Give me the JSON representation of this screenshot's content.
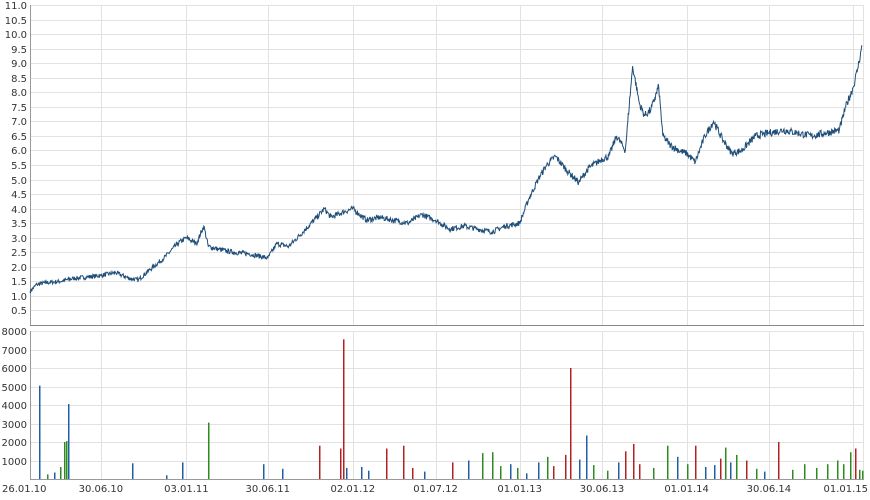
{
  "chart_data": [
    {
      "type": "line",
      "title": "",
      "xlabel": "",
      "ylabel": "",
      "ylim": [
        0,
        11
      ],
      "y_ticks": [
        "0.5",
        "1.0",
        "1.5",
        "2.0",
        "2.5",
        "3.0",
        "3.5",
        "4.0",
        "4.5",
        "5.0",
        "5.5",
        "6.0",
        "6.5",
        "7.0",
        "7.5",
        "8.0",
        "8.5",
        "9.0",
        "9.5",
        "10.0",
        "10.5",
        "11.0"
      ],
      "grid": true,
      "color": "#1f4e79",
      "series": [
        {
          "x": [
            "2010-01-26",
            "2010-02-10",
            "2010-03-01",
            "2010-04-01",
            "2010-05-01",
            "2010-06-01",
            "2010-06-30",
            "2010-08-01",
            "2010-09-01",
            "2010-09-20",
            "2010-10-15",
            "2010-11-15",
            "2010-12-15",
            "2011-01-03",
            "2011-01-25",
            "2011-02-10",
            "2011-02-20",
            "2011-03-15",
            "2011-04-15",
            "2011-05-20",
            "2011-06-30",
            "2011-07-20",
            "2011-08-15",
            "2011-09-15",
            "2011-10-15",
            "2011-11-01",
            "2011-11-15",
            "2011-12-15",
            "2012-01-02",
            "2012-02-01",
            "2012-03-01",
            "2012-04-01",
            "2012-05-01",
            "2012-06-01",
            "2012-07-01",
            "2012-08-01",
            "2012-09-01",
            "2012-10-01",
            "2012-11-01",
            "2012-12-01",
            "2013-01-01",
            "2013-01-20",
            "2013-02-10",
            "2013-03-01",
            "2013-03-20",
            "2013-04-15",
            "2013-05-10",
            "2013-06-01",
            "2013-06-30",
            "2013-07-15",
            "2013-08-01",
            "2013-08-20",
            "2013-09-05",
            "2013-09-20",
            "2013-10-01",
            "2013-10-15",
            "2013-11-01",
            "2013-11-10",
            "2013-11-25",
            "2013-12-15",
            "2014-01-01",
            "2014-01-20",
            "2014-02-10",
            "2014-03-01",
            "2014-03-20",
            "2014-04-10",
            "2014-05-01",
            "2014-06-01",
            "2014-06-30",
            "2014-08-01",
            "2014-09-01",
            "2014-10-01",
            "2014-11-01",
            "2014-12-01",
            "2014-12-15",
            "2015-01-01",
            "2015-01-10",
            "2015-01-20"
          ],
          "values": [
            1.15,
            1.4,
            1.45,
            1.5,
            1.6,
            1.65,
            1.7,
            1.8,
            1.6,
            1.55,
            1.9,
            2.3,
            2.8,
            3.0,
            2.8,
            3.4,
            2.7,
            2.6,
            2.5,
            2.45,
            2.3,
            2.8,
            2.7,
            3.2,
            3.7,
            4.0,
            3.7,
            3.9,
            4.0,
            3.6,
            3.7,
            3.6,
            3.5,
            3.8,
            3.6,
            3.3,
            3.4,
            3.3,
            3.2,
            3.4,
            3.5,
            4.3,
            5.0,
            5.5,
            5.8,
            5.3,
            4.9,
            5.4,
            5.7,
            5.8,
            6.5,
            6.0,
            8.9,
            7.6,
            7.2,
            7.4,
            8.2,
            6.5,
            6.2,
            6.0,
            5.9,
            5.6,
            6.5,
            7.0,
            6.4,
            5.9,
            6.0,
            6.5,
            6.6,
            6.7,
            6.6,
            6.5,
            6.6,
            6.7,
            7.5,
            8.2,
            8.8,
            9.6
          ]
        }
      ]
    },
    {
      "type": "bar",
      "title": "",
      "xlabel": "",
      "ylabel": "",
      "ylim": [
        0,
        8000
      ],
      "y_ticks": [
        "1000",
        "2000",
        "3000",
        "4000",
        "5000",
        "6000",
        "7000",
        "8000"
      ],
      "x_ticks": [
        "26.01.10",
        "30.06.10",
        "03.01.11",
        "30.06.11",
        "02.01.12",
        "01.07.12",
        "01.01.13",
        "30.06.13",
        "01.01.14",
        "30.06.14",
        "01.01.15"
      ],
      "grid": true,
      "colors": {
        "blue": "#1f5fa8",
        "green": "#2e8b1f",
        "red": "#b22222"
      },
      "bars": [
        {
          "x": "2010-02-15",
          "v": 5050,
          "c": "blue"
        },
        {
          "x": "2010-03-05",
          "v": 250,
          "c": "green"
        },
        {
          "x": "2010-03-20",
          "v": 350,
          "c": "blue"
        },
        {
          "x": "2010-04-01",
          "v": 650,
          "c": "green"
        },
        {
          "x": "2010-04-10",
          "v": 2000,
          "c": "green"
        },
        {
          "x": "2010-04-15",
          "v": 2050,
          "c": "green"
        },
        {
          "x": "2010-04-20",
          "v": 4050,
          "c": "blue"
        },
        {
          "x": "2010-09-05",
          "v": 850,
          "c": "blue"
        },
        {
          "x": "2010-11-20",
          "v": 200,
          "c": "blue"
        },
        {
          "x": "2010-12-25",
          "v": 900,
          "c": "blue"
        },
        {
          "x": "2011-02-20",
          "v": 3050,
          "c": "green"
        },
        {
          "x": "2011-06-20",
          "v": 800,
          "c": "blue"
        },
        {
          "x": "2011-08-01",
          "v": 550,
          "c": "blue"
        },
        {
          "x": "2011-10-20",
          "v": 1800,
          "c": "red"
        },
        {
          "x": "2011-12-05",
          "v": 1650,
          "c": "red"
        },
        {
          "x": "2011-12-12",
          "v": 7550,
          "c": "red"
        },
        {
          "x": "2011-12-18",
          "v": 600,
          "c": "blue"
        },
        {
          "x": "2012-01-20",
          "v": 650,
          "c": "blue"
        },
        {
          "x": "2012-02-05",
          "v": 450,
          "c": "blue"
        },
        {
          "x": "2012-03-15",
          "v": 1650,
          "c": "red"
        },
        {
          "x": "2012-04-20",
          "v": 1800,
          "c": "red"
        },
        {
          "x": "2012-05-10",
          "v": 600,
          "c": "red"
        },
        {
          "x": "2012-06-05",
          "v": 400,
          "c": "blue"
        },
        {
          "x": "2012-08-05",
          "v": 900,
          "c": "red"
        },
        {
          "x": "2012-09-10",
          "v": 1000,
          "c": "blue"
        },
        {
          "x": "2012-10-10",
          "v": 1400,
          "c": "green"
        },
        {
          "x": "2012-11-01",
          "v": 1450,
          "c": "green"
        },
        {
          "x": "2012-11-20",
          "v": 700,
          "c": "green"
        },
        {
          "x": "2012-12-10",
          "v": 800,
          "c": "blue"
        },
        {
          "x": "2012-12-25",
          "v": 600,
          "c": "green"
        },
        {
          "x": "2013-01-15",
          "v": 300,
          "c": "blue"
        },
        {
          "x": "2013-02-10",
          "v": 900,
          "c": "blue"
        },
        {
          "x": "2013-03-01",
          "v": 1200,
          "c": "green"
        },
        {
          "x": "2013-03-15",
          "v": 700,
          "c": "red"
        },
        {
          "x": "2013-04-10",
          "v": 1300,
          "c": "red"
        },
        {
          "x": "2013-04-20",
          "v": 6000,
          "c": "red"
        },
        {
          "x": "2013-05-10",
          "v": 1050,
          "c": "blue"
        },
        {
          "x": "2013-05-25",
          "v": 2350,
          "c": "blue"
        },
        {
          "x": "2013-06-10",
          "v": 750,
          "c": "green"
        },
        {
          "x": "2013-07-10",
          "v": 450,
          "c": "green"
        },
        {
          "x": "2013-08-05",
          "v": 900,
          "c": "blue"
        },
        {
          "x": "2013-08-20",
          "v": 1500,
          "c": "red"
        },
        {
          "x": "2013-09-05",
          "v": 1900,
          "c": "red"
        },
        {
          "x": "2013-09-20",
          "v": 800,
          "c": "red"
        },
        {
          "x": "2013-10-20",
          "v": 600,
          "c": "green"
        },
        {
          "x": "2013-11-20",
          "v": 1800,
          "c": "green"
        },
        {
          "x": "2013-12-10",
          "v": 1200,
          "c": "blue"
        },
        {
          "x": "2014-01-01",
          "v": 800,
          "c": "green"
        },
        {
          "x": "2014-01-20",
          "v": 1800,
          "c": "red"
        },
        {
          "x": "2014-02-10",
          "v": 650,
          "c": "blue"
        },
        {
          "x": "2014-03-01",
          "v": 750,
          "c": "blue"
        },
        {
          "x": "2014-03-15",
          "v": 1100,
          "c": "red"
        },
        {
          "x": "2014-03-25",
          "v": 1700,
          "c": "green"
        },
        {
          "x": "2014-04-05",
          "v": 900,
          "c": "blue"
        },
        {
          "x": "2014-04-20",
          "v": 1300,
          "c": "green"
        },
        {
          "x": "2014-05-10",
          "v": 1000,
          "c": "red"
        },
        {
          "x": "2014-06-01",
          "v": 550,
          "c": "green"
        },
        {
          "x": "2014-06-20",
          "v": 400,
          "c": "blue"
        },
        {
          "x": "2014-07-20",
          "v": 2000,
          "c": "red"
        },
        {
          "x": "2014-08-20",
          "v": 500,
          "c": "green"
        },
        {
          "x": "2014-09-15",
          "v": 800,
          "c": "green"
        },
        {
          "x": "2014-10-10",
          "v": 600,
          "c": "green"
        },
        {
          "x": "2014-11-05",
          "v": 800,
          "c": "green"
        },
        {
          "x": "2014-11-25",
          "v": 1000,
          "c": "green"
        },
        {
          "x": "2014-12-10",
          "v": 800,
          "c": "green"
        },
        {
          "x": "2014-12-25",
          "v": 1450,
          "c": "green"
        },
        {
          "x": "2015-01-05",
          "v": 1650,
          "c": "red"
        },
        {
          "x": "2015-01-12",
          "v": 500,
          "c": "green"
        },
        {
          "x": "2015-01-20",
          "v": 450,
          "c": "green"
        }
      ]
    }
  ]
}
